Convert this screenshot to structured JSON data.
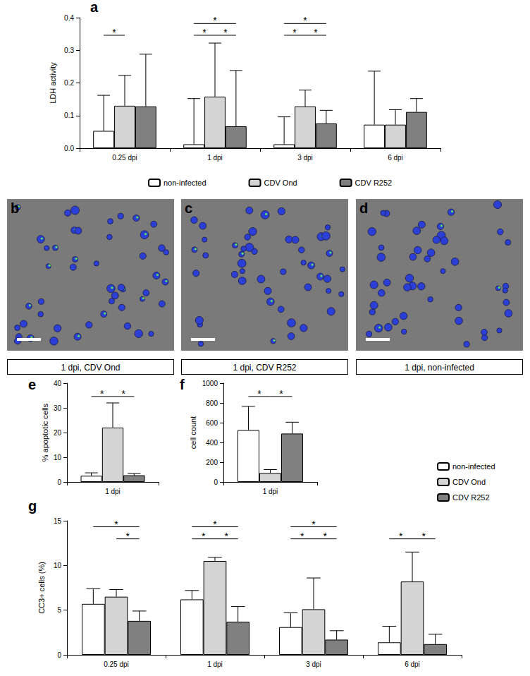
{
  "chart_data": [
    {
      "panel": "a",
      "type": "bar",
      "y_label": "LDH activity",
      "categories": [
        "0.25 dpi",
        "1 dpi",
        "3 dpi",
        "6 dpi"
      ],
      "series": [
        {
          "name": "non-infected",
          "color": "#ffffff",
          "values": [
            0.053,
            0.012,
            0.012,
            0.072
          ],
          "errors": [
            0.109,
            0.14,
            0.084,
            0.164
          ]
        },
        {
          "name": "CDV Ond",
          "color": "#d4d4d4",
          "values": [
            0.13,
            0.158,
            0.128,
            0.072
          ],
          "errors": [
            0.093,
            0.164,
            0.05,
            0.046
          ]
        },
        {
          "name": "CDV R252",
          "color": "#808080",
          "values": [
            0.128,
            0.067,
            0.076,
            0.111
          ],
          "errors": [
            0.16,
            0.171,
            0.04,
            0.041
          ]
        }
      ],
      "ylim": [
        0,
        0.4
      ],
      "yticks": [
        {
          "value": 0,
          "label": "0.0"
        },
        {
          "value": 0.1,
          "label": "0.1"
        },
        {
          "value": 0.2,
          "label": "0.2"
        },
        {
          "value": 0.3,
          "label": "0.3"
        },
        {
          "value": 0.4,
          "label": "0.4"
        }
      ],
      "grid": false,
      "legend": "bottom",
      "significance": [
        {
          "category": "0.25 dpi",
          "pair": [
            "non-infected",
            "CDV Ond"
          ],
          "label": "*"
        },
        {
          "category": "1 dpi",
          "pair": [
            "non-infected",
            "CDV R252"
          ],
          "label": "*"
        },
        {
          "category": "1 dpi",
          "pair": [
            "non-infected",
            "CDV Ond"
          ],
          "label": "*"
        },
        {
          "category": "1 dpi",
          "pair": [
            "CDV Ond",
            "CDV R252"
          ],
          "label": "*"
        },
        {
          "category": "3 dpi",
          "pair": [
            "non-infected",
            "CDV R252"
          ],
          "label": "*"
        },
        {
          "category": "3 dpi",
          "pair": [
            "non-infected",
            "CDV Ond"
          ],
          "label": "*"
        },
        {
          "category": "3 dpi",
          "pair": [
            "CDV Ond",
            "CDV R252"
          ],
          "label": "*"
        }
      ]
    },
    {
      "panel": "e",
      "type": "bar",
      "y_label": "% apoptotic cells",
      "categories": [
        "1 dpi"
      ],
      "series": [
        {
          "name": "non-infected",
          "color": "#ffffff",
          "values": [
            2.5
          ],
          "errors": [
            1.2
          ]
        },
        {
          "name": "CDV Ond",
          "color": "#d4d4d4",
          "values": [
            22
          ],
          "errors": [
            10
          ]
        },
        {
          "name": "CDV R252",
          "color": "#808080",
          "values": [
            2.7
          ],
          "errors": [
            0.7
          ]
        }
      ],
      "ylim": [
        0,
        40
      ],
      "yticks": [
        0,
        10,
        20,
        30,
        40
      ],
      "grid": false,
      "significance": [
        {
          "category": "1 dpi",
          "pair": [
            "non-infected",
            "CDV Ond"
          ],
          "label": "*"
        },
        {
          "category": "1 dpi",
          "pair": [
            "CDV Ond",
            "CDV R252"
          ],
          "label": "*"
        }
      ]
    },
    {
      "panel": "f",
      "type": "bar",
      "y_label": "cell count",
      "categories": [
        "1 dpi"
      ],
      "series": [
        {
          "name": "non-infected",
          "color": "#ffffff",
          "values": [
            525
          ],
          "errors": [
            240
          ]
        },
        {
          "name": "CDV Ond",
          "color": "#d4d4d4",
          "values": [
            90
          ],
          "errors": [
            35
          ]
        },
        {
          "name": "CDV R252",
          "color": "#808080",
          "values": [
            490
          ],
          "errors": [
            115
          ]
        }
      ],
      "ylim": [
        0,
        1000
      ],
      "yticks": [
        0,
        200,
        400,
        600,
        800,
        1000
      ],
      "grid": false,
      "significance": [
        {
          "category": "1 dpi",
          "pair": [
            "non-infected",
            "CDV Ond"
          ],
          "label": "*"
        },
        {
          "category": "1 dpi",
          "pair": [
            "CDV Ond",
            "CDV R252"
          ],
          "label": "*"
        }
      ]
    },
    {
      "panel": "g",
      "type": "bar",
      "y_label": "CC3+ cells (%)",
      "categories": [
        "0.25 dpi",
        "1 dpi",
        "3 dpi",
        "6 dpi"
      ],
      "series": [
        {
          "name": "non-infected",
          "color": "#ffffff",
          "values": [
            5.7,
            6.2,
            3.1,
            1.4
          ],
          "errors": [
            1.7,
            1.0,
            1.6,
            1.8
          ]
        },
        {
          "name": "CDV Ond",
          "color": "#d4d4d4",
          "values": [
            6.5,
            10.5,
            5.1,
            8.2
          ],
          "errors": [
            0.8,
            0.4,
            3.5,
            3.3
          ]
        },
        {
          "name": "CDV R252",
          "color": "#808080",
          "values": [
            3.8,
            3.7,
            1.7,
            1.2
          ],
          "errors": [
            1.1,
            1.7,
            1.0,
            1.1
          ]
        }
      ],
      "ylim": [
        0,
        15
      ],
      "yticks": [
        0,
        5,
        10,
        15
      ],
      "grid": false,
      "legend": "right",
      "significance": [
        {
          "category": "0.25 dpi",
          "pair": [
            "non-infected",
            "CDV R252"
          ],
          "label": "*"
        },
        {
          "category": "0.25 dpi",
          "pair": [
            "CDV Ond",
            "CDV R252"
          ],
          "label": "*"
        },
        {
          "category": "1 dpi",
          "pair": [
            "non-infected",
            "CDV R252"
          ],
          "label": "*"
        },
        {
          "category": "1 dpi",
          "pair": [
            "non-infected",
            "CDV Ond"
          ],
          "label": "*"
        },
        {
          "category": "1 dpi",
          "pair": [
            "CDV Ond",
            "CDV R252"
          ],
          "label": "*"
        },
        {
          "category": "3 dpi",
          "pair": [
            "non-infected",
            "CDV R252"
          ],
          "label": "*"
        },
        {
          "category": "3 dpi",
          "pair": [
            "non-infected",
            "CDV Ond"
          ],
          "label": "*"
        },
        {
          "category": "3 dpi",
          "pair": [
            "CDV Ond",
            "CDV R252"
          ],
          "label": "*"
        },
        {
          "category": "6 dpi",
          "pair": [
            "non-infected",
            "CDV Ond"
          ],
          "label": "*"
        },
        {
          "category": "6 dpi",
          "pair": [
            "CDV Ond",
            "CDV R252"
          ],
          "label": "*"
        }
      ]
    }
  ],
  "images": [
    {
      "panel": "b",
      "caption": "1 dpi, CDV Ond"
    },
    {
      "panel": "c",
      "caption": "1 dpi, CDV R252"
    },
    {
      "panel": "d",
      "caption": "1 dpi, non-infected"
    }
  ]
}
